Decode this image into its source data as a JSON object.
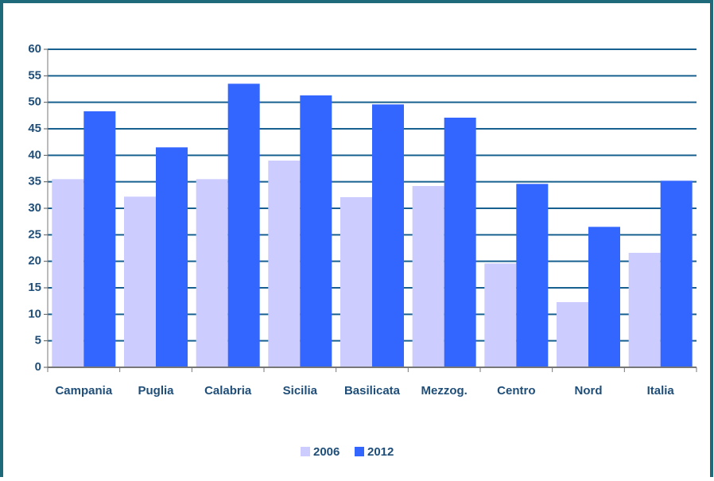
{
  "chart_data": {
    "type": "bar",
    "categories": [
      "Campania",
      "Puglia",
      "Calabria",
      "Sicilia",
      "Basilicata",
      "Mezzog.",
      "Centro",
      "Nord",
      "Italia"
    ],
    "series": [
      {
        "name": "2006",
        "color": "#ccccff",
        "values": [
          35.5,
          32.2,
          35.5,
          39,
          32.1,
          34.2,
          19.6,
          12.3,
          21.6
        ]
      },
      {
        "name": "2012",
        "color": "#3366ff",
        "values": [
          48.3,
          41.5,
          53.5,
          51.3,
          49.6,
          47.1,
          34.6,
          26.5,
          35.2
        ]
      }
    ],
    "ylim": [
      0,
      60
    ],
    "yticks": [
      0,
      5,
      10,
      15,
      20,
      25,
      30,
      35,
      40,
      45,
      50,
      55,
      60
    ],
    "grid": true,
    "legend": "bottom"
  }
}
